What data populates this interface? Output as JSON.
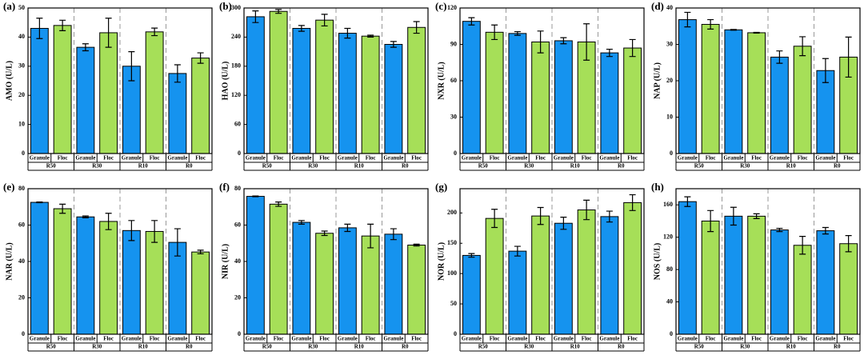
{
  "chart_data": [
    {
      "type": "bar",
      "panel_label": "(a)",
      "y_label": "AMO (U/L)",
      "groups": [
        "R50",
        "R30",
        "R10",
        "R0"
      ],
      "ylim": [
        0,
        50
      ],
      "yticks": [
        0,
        10,
        20,
        30,
        40,
        50
      ],
      "series": [
        {
          "name": "Granule",
          "color": "#1593ef",
          "values": [
            43,
            36.5,
            30,
            27.5
          ],
          "errors": [
            3.5,
            1.2,
            5,
            3
          ]
        },
        {
          "name": "Floc",
          "color": "#a6df58",
          "values": [
            44,
            41.5,
            41.8,
            32.8
          ],
          "errors": [
            1.8,
            5,
            1.3,
            1.8
          ]
        }
      ]
    },
    {
      "type": "bar",
      "panel_label": "(b)",
      "y_label": "HAO (U/L)",
      "groups": [
        "R50",
        "R30",
        "R10",
        "R0"
      ],
      "ylim": [
        0,
        300
      ],
      "yticks": [
        0,
        60,
        120,
        180,
        240,
        300
      ],
      "series": [
        {
          "name": "Granule",
          "color": "#1593ef",
          "values": [
            282,
            258,
            248,
            225
          ],
          "errors": [
            12,
            6,
            10,
            6
          ]
        },
        {
          "name": "Floc",
          "color": "#a6df58",
          "values": [
            293,
            275,
            242,
            260
          ],
          "errors": [
            4,
            12,
            2,
            12
          ]
        }
      ]
    },
    {
      "type": "bar",
      "panel_label": "(c)",
      "y_label": "NXR (U/L)",
      "groups": [
        "R50",
        "R30",
        "R10",
        "R0"
      ],
      "ylim": [
        0,
        120
      ],
      "yticks": [
        0,
        30,
        60,
        90,
        120
      ],
      "series": [
        {
          "name": "Granule",
          "color": "#1593ef",
          "values": [
            109,
            99,
            93,
            83
          ],
          "errors": [
            3,
            1.5,
            2.5,
            3
          ]
        },
        {
          "name": "Floc",
          "color": "#a6df58",
          "values": [
            100,
            92,
            92,
            87
          ],
          "errors": [
            6,
            9,
            15,
            7
          ]
        }
      ]
    },
    {
      "type": "bar",
      "panel_label": "(d)",
      "y_label": "NAP (U/L)",
      "groups": [
        "R50",
        "R30",
        "R10",
        "R0"
      ],
      "ylim": [
        0,
        40
      ],
      "yticks": [
        0,
        10,
        20,
        30,
        40
      ],
      "series": [
        {
          "name": "Granule",
          "color": "#1593ef",
          "values": [
            36.8,
            34,
            26.5,
            22.8
          ],
          "errors": [
            2,
            0.1,
            1.7,
            3.3
          ]
        },
        {
          "name": "Floc",
          "color": "#a6df58",
          "values": [
            35.5,
            33.2,
            29.5,
            26.5
          ],
          "errors": [
            1.3,
            0.1,
            2.6,
            5.5
          ]
        }
      ]
    },
    {
      "type": "bar",
      "panel_label": "(e)",
      "y_label": "NAR (U/L)",
      "groups": [
        "R50",
        "R30",
        "R10",
        "R0"
      ],
      "ylim": [
        0,
        80
      ],
      "yticks": [
        0,
        20,
        40,
        60,
        80
      ],
      "series": [
        {
          "name": "Granule",
          "color": "#1593ef",
          "values": [
            72.5,
            64.5,
            57,
            50.5
          ],
          "errors": [
            0.2,
            0.5,
            5.5,
            7.5
          ]
        },
        {
          "name": "Floc",
          "color": "#a6df58",
          "values": [
            69,
            62,
            56.5,
            45.2
          ],
          "errors": [
            2.5,
            4.5,
            6,
            1
          ]
        }
      ]
    },
    {
      "type": "bar",
      "panel_label": "(f)",
      "y_label": "NIR (U/L)",
      "groups": [
        "R50",
        "R30",
        "R10",
        "R0"
      ],
      "ylim": [
        0,
        80
      ],
      "yticks": [
        0,
        20,
        40,
        60,
        80
      ],
      "series": [
        {
          "name": "Granule",
          "color": "#1593ef",
          "values": [
            75.8,
            61.5,
            58.5,
            55
          ],
          "errors": [
            0.2,
            1,
            2,
            3
          ]
        },
        {
          "name": "Floc",
          "color": "#a6df58",
          "values": [
            71.5,
            55.5,
            54,
            49
          ],
          "errors": [
            1.2,
            1.2,
            6.5,
            0.5
          ]
        }
      ]
    },
    {
      "type": "bar",
      "panel_label": "(g)",
      "y_label": "NOR (U/L)",
      "groups": [
        "R50",
        "R30",
        "R10",
        "R0"
      ],
      "ylim": [
        0,
        240
      ],
      "yticks": [
        0,
        50,
        100,
        150,
        200
      ],
      "series": [
        {
          "name": "Granule",
          "color": "#1593ef",
          "values": [
            130,
            137,
            183,
            194
          ],
          "errors": [
            3,
            8,
            10,
            9
          ]
        },
        {
          "name": "Floc",
          "color": "#a6df58",
          "values": [
            191,
            195,
            205,
            217
          ],
          "errors": [
            15,
            14,
            16,
            13
          ]
        }
      ]
    },
    {
      "type": "bar",
      "panel_label": "(h)",
      "y_label": "NOS (U/L)",
      "groups": [
        "R50",
        "R30",
        "R10",
        "R0"
      ],
      "ylim": [
        0,
        180
      ],
      "yticks": [
        0,
        40,
        80,
        120,
        160
      ],
      "series": [
        {
          "name": "Granule",
          "color": "#1593ef",
          "values": [
            164,
            146,
            129,
            128
          ],
          "errors": [
            6,
            11,
            2,
            4
          ]
        },
        {
          "name": "Floc",
          "color": "#a6df58",
          "values": [
            140,
            146,
            110,
            112
          ],
          "errors": [
            13,
            3,
            11,
            10
          ]
        }
      ]
    }
  ]
}
